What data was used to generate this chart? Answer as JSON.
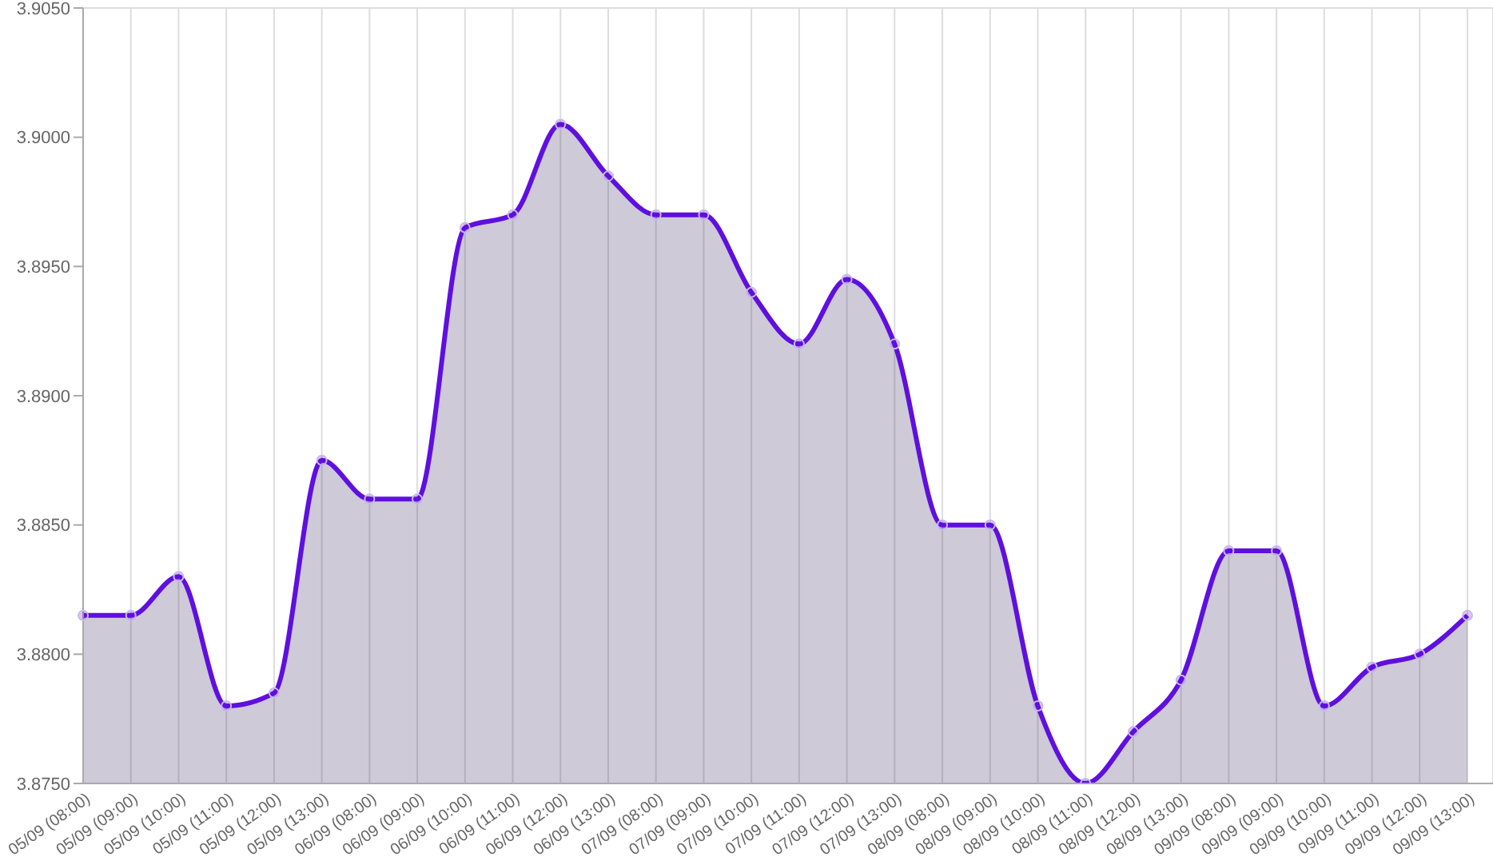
{
  "chart_data": {
    "type": "area",
    "categories": [
      "05/09 (08:00)",
      "05/09 (09:00)",
      "05/09 (10:00)",
      "05/09 (11:00)",
      "05/09 (12:00)",
      "05/09 (13:00)",
      "06/09 (08:00)",
      "06/09 (09:00)",
      "06/09 (10:00)",
      "06/09 (11:00)",
      "06/09 (12:00)",
      "06/09 (13:00)",
      "07/09 (08:00)",
      "07/09 (09:00)",
      "07/09 (10:00)",
      "07/09 (11:00)",
      "07/09 (12:00)",
      "07/09 (13:00)",
      "08/09 (08:00)",
      "08/09 (09:00)",
      "08/09 (10:00)",
      "08/09 (11:00)",
      "08/09 (12:00)",
      "08/09 (13:00)",
      "09/09 (08:00)",
      "09/09 (09:00)",
      "09/09 (10:00)",
      "09/09 (11:00)",
      "09/09 (12:00)",
      "09/09 (13:00)"
    ],
    "series": [
      {
        "color": "#5f0fe0",
        "values": [
          3.8815,
          3.8815,
          3.883,
          3.878,
          3.8785,
          3.8875,
          3.886,
          3.886,
          3.8965,
          3.897,
          3.9005,
          3.8985,
          3.897,
          3.897,
          3.894,
          3.892,
          3.8945,
          3.892,
          3.885,
          3.885,
          3.878,
          3.875,
          3.877,
          3.879,
          3.884,
          3.884,
          3.878,
          3.8795,
          3.88,
          3.8815
        ]
      }
    ],
    "ylim": [
      3.875,
      3.905
    ],
    "yticks": [
      {
        "value": 3.875,
        "label": "3.8750"
      },
      {
        "value": 3.88,
        "label": "3.8800"
      },
      {
        "value": 3.885,
        "label": "3.8850"
      },
      {
        "value": 3.89,
        "label": "3.8900"
      },
      {
        "value": 3.895,
        "label": "3.8950"
      },
      {
        "value": 3.9,
        "label": "3.9000"
      },
      {
        "value": 3.905,
        "label": "3.9050"
      }
    ],
    "grid": true,
    "marker": "circle"
  }
}
